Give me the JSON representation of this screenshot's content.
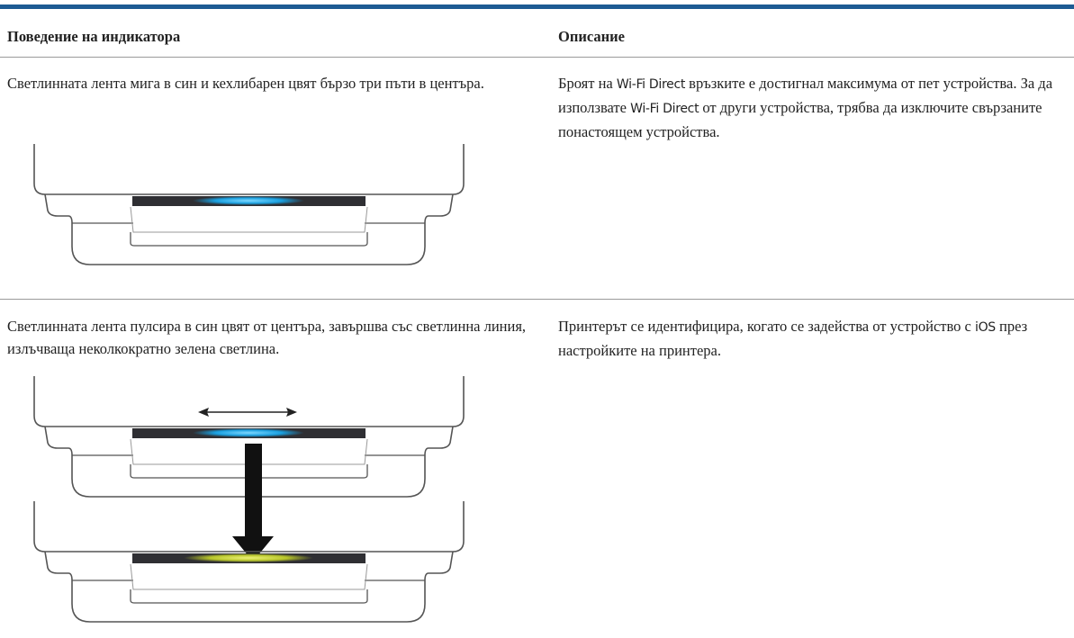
{
  "table": {
    "header": [
      "Поведение на индикатора",
      "Описание"
    ],
    "rows": [
      [
        [
          "Светлинната лента мига в син и кехлибарен цвят бързо три пъти в центъра."
        ],
        [
          "Броят на ",
          "Wi-Fi Direct",
          " връзките е достигнал максимума от пет устройства. За да използвате ",
          "Wi-Fi Direct",
          " от други устройства, трябва да изключите свързаните понастоящем устройства."
        ]
      ],
      [
        [
          "Светлинната лента пулсира в син цвят от центъра, завършва със светлинна линия, излъчваща неколкократно зелена светлина."
        ],
        [
          "Принтерът се идентифицира, когато се задейства от устройство с ",
          "iOS",
          " през настройките на принтера."
        ]
      ]
    ]
  }
}
